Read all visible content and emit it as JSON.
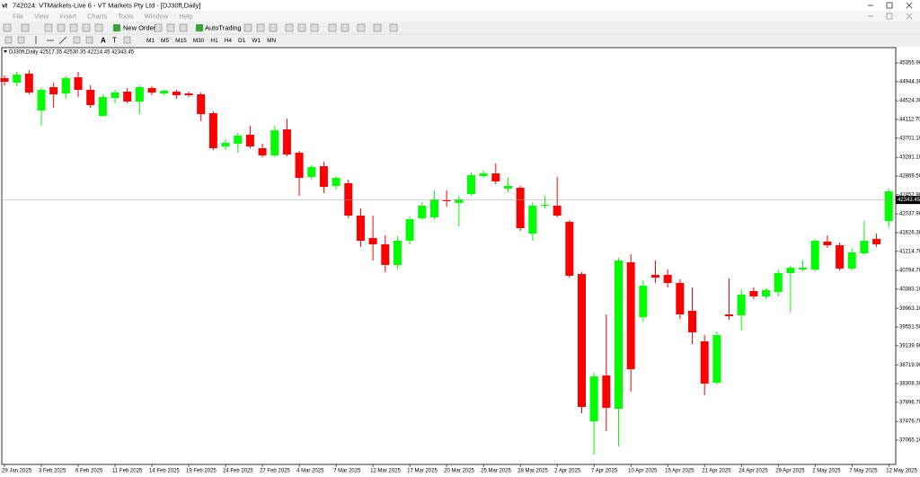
{
  "window": {
    "title": "742024: VTMarkets-Live 6 - VT Markets Pty Ltd - [DJ30ft,Daily]"
  },
  "menu": [
    "File",
    "View",
    "Insert",
    "Charts",
    "Tools",
    "Window",
    "Help"
  ],
  "toolbar": {
    "new_order": "New Order",
    "autotrading": "AutoTrading",
    "timeframes": [
      "M1",
      "M5",
      "M15",
      "M30",
      "H1",
      "H4",
      "D1",
      "W1",
      "MN"
    ]
  },
  "chart_data": {
    "type": "candlestick",
    "title": "DJ30ft,Daily  42517.35 42530.35 42214.45 42343.45",
    "categories": [
      "29 Jan 2025",
      null,
      null,
      "3 Feb 2025",
      null,
      null,
      "6 Feb 2025",
      null,
      null,
      "11 Feb 2025",
      null,
      null,
      "14 Feb 2025",
      null,
      null,
      "19 Feb 2025",
      null,
      null,
      "24 Feb 2025",
      null,
      null,
      "27 Feb 2025",
      null,
      null,
      "4 Mar 2025",
      null,
      null,
      "7 Mar 2025",
      null,
      null,
      "12 Mar 2025",
      null,
      null,
      "17 Mar 2025",
      null,
      null,
      "20 Mar 2025",
      null,
      null,
      "25 Mar 2025",
      null,
      null,
      "28 Mar 2025",
      null,
      null,
      "2 Apr 2025",
      null,
      null,
      "7 Apr 2025",
      null,
      null,
      "10 Apr 2025",
      null,
      null,
      "15 Apr 2025",
      null,
      null,
      "21 Apr 2025",
      null,
      null,
      "24 Apr 2025",
      null,
      null,
      "29 Apr 2025",
      null,
      null,
      "2 May 2025",
      null,
      null,
      "7 May 2025",
      null,
      null,
      "12 May 2025"
    ],
    "open": [
      45021,
      44922,
      45119,
      44310,
      44823,
      44685,
      45040,
      44764,
      44192,
      44586,
      44725,
      44507,
      44803,
      44685,
      44725,
      44685,
      44665,
      44251,
      43520,
      43580,
      43777,
      43481,
      43323,
      43895,
      43382,
      42849,
      43086,
      42652,
      42711,
      42000,
      41507,
      41369,
      40915,
      41448,
      41941,
      41961,
      42336,
      42277,
      42474,
      42869,
      42928,
      42593,
      42612,
      41606,
      42218,
      42218,
      41862,
      40717,
      37480,
      38487,
      37756,
      40974,
      39770,
      40698,
      40698,
      40520,
      39908,
      39237,
      38329,
      39829,
      39809,
      40342,
      40224,
      40322,
      40737,
      40816,
      40816,
      41428,
      41349,
      40836,
      41171,
      41487,
      41882
    ],
    "high": [
      45080,
      45159,
      45198,
      44823,
      44922,
      45060,
      45159,
      44863,
      44665,
      44764,
      44803,
      44863,
      44843,
      44764,
      44764,
      44725,
      44705,
      44290,
      43678,
      43816,
      43974,
      43580,
      43974,
      44132,
      43422,
      43106,
      43185,
      42869,
      42790,
      42158,
      42000,
      41566,
      41546,
      41981,
      42296,
      42553,
      42553,
      42435,
      42948,
      42987,
      43145,
      42849,
      42652,
      42296,
      42435,
      42849,
      41902,
      40757,
      38546,
      39829,
      41073,
      41152,
      40579,
      41013,
      40816,
      40599,
      40421,
      39375,
      39454,
      40619,
      40382,
      40421,
      40401,
      40816,
      40895,
      41013,
      41487,
      41566,
      41408,
      41290,
      41882,
      41606,
      42593
    ],
    "low": [
      44863,
      44843,
      44665,
      43974,
      44369,
      44567,
      44606,
      44369,
      44172,
      44468,
      44468,
      44231,
      44646,
      44646,
      44567,
      44606,
      44073,
      43441,
      43441,
      43382,
      43481,
      43283,
      43283,
      43303,
      42435,
      42790,
      42494,
      42573,
      41941,
      41309,
      41013,
      40757,
      40816,
      41369,
      41902,
      41902,
      42198,
      41764,
      42435,
      42829,
      42691,
      42514,
      41665,
      41448,
      42158,
      41961,
      40638,
      37658,
      36750,
      37263,
      36927,
      38131,
      39671,
      40520,
      40421,
      39730,
      39178,
      38052,
      38289,
      39711,
      39474,
      40165,
      40165,
      40224,
      39868,
      40777,
      40777,
      41290,
      40796,
      40796,
      41132,
      41309,
      41744
    ],
    "close": [
      44942,
      45099,
      44705,
      44764,
      44665,
      45021,
      44764,
      44428,
      44606,
      44705,
      44507,
      44823,
      44705,
      44744,
      44646,
      44646,
      44231,
      43481,
      43599,
      43757,
      43520,
      43323,
      43876,
      43343,
      42829,
      43066,
      42632,
      42829,
      42000,
      41448,
      41369,
      40915,
      41448,
      41921,
      42218,
      42356,
      42316,
      42356,
      42889,
      42928,
      42751,
      42652,
      41724,
      42218,
      42237,
      42000,
      40678,
      37796,
      38467,
      37776,
      41013,
      38625,
      40461,
      40638,
      40520,
      39829,
      39434,
      38309,
      39375,
      39790,
      40263,
      40224,
      40362,
      40737,
      40855,
      40855,
      41448,
      41349,
      40836,
      41191,
      41448,
      41369,
      42533
    ],
    "up_color": "#00ff00",
    "down_color": "#ff0000",
    "current_price": 42343.45,
    "ylim": [
      36532,
      45692
    ],
    "yticks": [
      {
        "value": 45355.9,
        "label": "45355.90"
      },
      {
        "value": 44944.3,
        "label": "44944.30"
      },
      {
        "value": 44524.3,
        "label": "44524.30"
      },
      {
        "value": 44112.7,
        "label": "44112.70"
      },
      {
        "value": 43701.1,
        "label": "43701.10"
      },
      {
        "value": 43281.1,
        "label": "43281.10"
      },
      {
        "value": 42869.5,
        "label": "42869.50"
      },
      {
        "value": 42457.9,
        "label": "42457.90"
      },
      {
        "value": 42037.9,
        "label": "42037.90"
      },
      {
        "value": 41626.3,
        "label": "41626.30"
      },
      {
        "value": 41214.7,
        "label": "41214.70"
      },
      {
        "value": 40794.7,
        "label": "40794.70"
      },
      {
        "value": 40383.1,
        "label": "40383.10"
      },
      {
        "value": 39963.1,
        "label": "39963.10"
      },
      {
        "value": 39551.5,
        "label": "39551.50"
      },
      {
        "value": 39139.9,
        "label": "39139.90"
      },
      {
        "value": 38719.9,
        "label": "38719.90"
      },
      {
        "value": 38308.3,
        "label": "38308.30"
      },
      {
        "value": 37896.7,
        "label": "37896.70"
      },
      {
        "value": 37476.7,
        "label": "37476.70"
      },
      {
        "value": 37065.1,
        "label": "37065.10"
      }
    ],
    "grid": false
  }
}
